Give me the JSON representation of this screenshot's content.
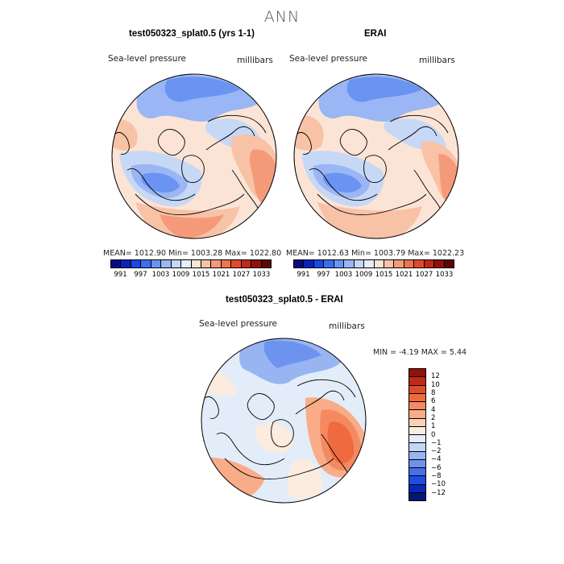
{
  "title": "ANN",
  "panels": [
    {
      "title": "test050323_splat0.5 (yrs 1-1)",
      "variable": "Sea-level pressure",
      "units": "millibars",
      "stats": "MEAN= 1012.90   Min= 1003.28   Max= 1022.80"
    },
    {
      "title": "ERAI",
      "variable": "Sea-level pressure",
      "units": "millibars",
      "stats": "MEAN= 1012.63   Min= 1003.79   Max= 1022.23"
    },
    {
      "title": "test050323_splat0.5 - ERAI",
      "variable": "Sea-level pressure",
      "units": "millibars",
      "stats": "MIN =   -4.19  MAX =    5.44"
    }
  ],
  "colorbar_abs": {
    "ticks": [
      "991",
      "997",
      "1003",
      "1009",
      "1015",
      "1021",
      "1027",
      "1033"
    ],
    "colors": [
      "#0a0a86",
      "#0c22b8",
      "#1a48e0",
      "#3c6ff0",
      "#6a93f2",
      "#9ab6f4",
      "#c6d8f5",
      "#e6eefa",
      "#fbe4d6",
      "#f8c2a6",
      "#f59a79",
      "#ef7350",
      "#e04b2c",
      "#c02a17",
      "#8f1109",
      "#600404"
    ]
  },
  "colorbar_diff": {
    "ticks": [
      "12",
      "10",
      "8",
      "6",
      "4",
      "2",
      "1",
      "0",
      "−1",
      "−2",
      "−4",
      "−6",
      "−8",
      "−10",
      "−12"
    ],
    "colors": [
      "#8f1109",
      "#c02a17",
      "#e04b2c",
      "#f06a40",
      "#f58a60",
      "#f8ad88",
      "#fbd0b6",
      "#fcebdf",
      "#e3edf9",
      "#c2d6f5",
      "#98b5f2",
      "#6e93ef",
      "#4471ea",
      "#1f4ddb",
      "#0a28b8",
      "#07157a"
    ]
  }
}
